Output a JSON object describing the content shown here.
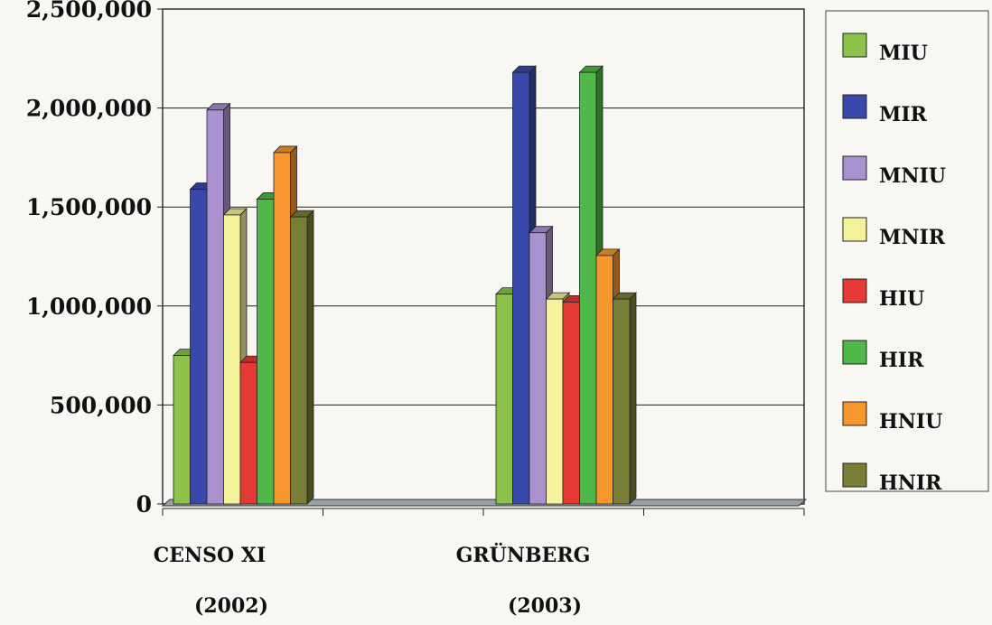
{
  "chart_data": {
    "type": "bar",
    "title": "",
    "xlabel": "",
    "ylabel": "",
    "categories": [
      {
        "line1": "CENSO XI",
        "line2": "(2002)"
      },
      {
        "line1": "GRÜNBERG",
        "line2": "(2003)"
      }
    ],
    "yticks": [
      "0",
      "500,000",
      "1,000,000",
      "1,500,000",
      "2,000,000",
      "2,500,000"
    ],
    "ylim": [
      0,
      2500000
    ],
    "grid": true,
    "legend_position": "right",
    "series": [
      {
        "name": "MIU",
        "color": "#8bc34a",
        "values": [
          750000,
          1060000
        ]
      },
      {
        "name": "MIR",
        "color": "#3949ab",
        "values": [
          1590000,
          2180000
        ]
      },
      {
        "name": "MNIU",
        "color": "#a992cf",
        "values": [
          1990000,
          1370000
        ]
      },
      {
        "name": "MNIR",
        "color": "#f4f29a",
        "values": [
          1460000,
          1035000
        ]
      },
      {
        "name": "HIU",
        "color": "#e53935",
        "values": [
          715000,
          1020000
        ]
      },
      {
        "name": "HIR",
        "color": "#4fb848",
        "values": [
          1540000,
          2180000
        ]
      },
      {
        "name": "HNIU",
        "color": "#f7962d",
        "values": [
          1775000,
          1255000
        ]
      },
      {
        "name": "HNIR",
        "color": "#7a7d35",
        "values": [
          1450000,
          1035000
        ]
      }
    ]
  }
}
